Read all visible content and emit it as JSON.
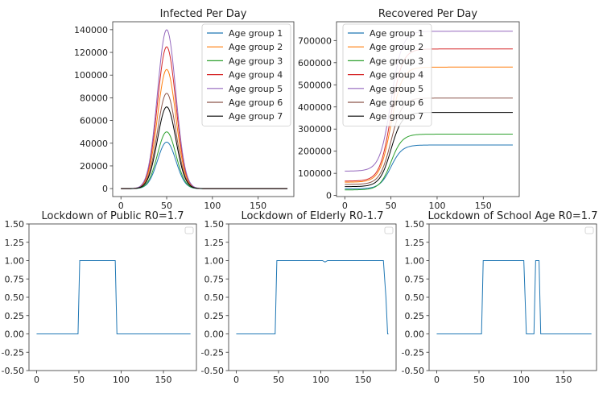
{
  "chart_data": [
    {
      "type": "line",
      "title": "Infected Per Day",
      "xlabel": "",
      "ylabel": "",
      "xlim": [
        -9,
        189
      ],
      "ylim": [
        -7000,
        147000
      ],
      "xticks": [
        0,
        50,
        100,
        150
      ],
      "yticks": [
        0,
        20000,
        40000,
        60000,
        80000,
        100000,
        120000,
        140000
      ],
      "legend": "top-right",
      "model": "gaussian",
      "center": 50,
      "width": 10,
      "series": [
        {
          "name": "Age group 1",
          "color": "#1f77b4",
          "base": 0,
          "peak": 41000
        },
        {
          "name": "Age group 2",
          "color": "#ff7f0e",
          "base": 0,
          "peak": 105000
        },
        {
          "name": "Age group 3",
          "color": "#2ca02c",
          "base": 0,
          "peak": 50000
        },
        {
          "name": "Age group 4",
          "color": "#d62728",
          "base": 0,
          "peak": 125000
        },
        {
          "name": "Age group 5",
          "color": "#9467bd",
          "base": 0,
          "peak": 140000
        },
        {
          "name": "Age group 6",
          "color": "#8c564b",
          "base": 0,
          "peak": 84000
        },
        {
          "name": "Age group 7",
          "color": "#000000",
          "base": 0,
          "peak": 72000
        }
      ]
    },
    {
      "type": "line",
      "title": "Recovered Per Day",
      "xlabel": "",
      "ylabel": "",
      "xlim": [
        -9,
        189
      ],
      "ylim": [
        -5000,
        785000
      ],
      "xticks": [
        0,
        50,
        100,
        150
      ],
      "yticks": [
        0,
        100000,
        200000,
        300000,
        400000,
        500000,
        600000,
        700000
      ],
      "legend": "top-left",
      "model": "logistic",
      "center": 50,
      "width": 6,
      "series": [
        {
          "name": "Age group 1",
          "color": "#1f77b4",
          "base": 30000,
          "peak": 228000
        },
        {
          "name": "Age group 2",
          "color": "#ff7f0e",
          "base": 60000,
          "peak": 580000
        },
        {
          "name": "Age group 3",
          "color": "#2ca02c",
          "base": 25000,
          "peak": 277000
        },
        {
          "name": "Age group 4",
          "color": "#d62728",
          "base": 65000,
          "peak": 662000
        },
        {
          "name": "Age group 5",
          "color": "#9467bd",
          "base": 110000,
          "peak": 742000
        },
        {
          "name": "Age group 6",
          "color": "#8c564b",
          "base": 50000,
          "peak": 440000
        },
        {
          "name": "Age group 7",
          "color": "#000000",
          "base": 40000,
          "peak": 375000
        }
      ]
    },
    {
      "type": "line",
      "title": "Lockdown of Public R0=1.7",
      "xlabel": "",
      "ylabel": "",
      "xlim": [
        -9,
        189
      ],
      "ylim": [
        -0.5,
        1.5
      ],
      "xticks": [
        0,
        50,
        100,
        150
      ],
      "yticks": [
        -0.5,
        -0.25,
        0.0,
        0.25,
        0.5,
        0.75,
        1.0,
        1.25,
        1.5
      ],
      "legend": "top-right",
      "series": [
        {
          "name": "",
          "color": "#1f77b4",
          "x": [
            0,
            49,
            51,
            93,
            95,
            182
          ],
          "y": [
            0,
            0,
            1,
            1,
            0,
            0
          ]
        }
      ]
    },
    {
      "type": "line",
      "title": "Lockdown of Elderly R0-1.7",
      "xlabel": "",
      "ylabel": "",
      "xlim": [
        -9,
        189
      ],
      "ylim": [
        -0.5,
        1.5
      ],
      "xticks": [
        0,
        50,
        100,
        150
      ],
      "yticks": [
        -0.5,
        -0.25,
        0.0,
        0.25,
        0.5,
        0.75,
        1.0,
        1.25,
        1.5
      ],
      "legend": "top-right",
      "series": [
        {
          "name": "",
          "color": "#1f77b4",
          "x": [
            0,
            46,
            48,
            102,
            105,
            108,
            174,
            177,
            179,
            180
          ],
          "y": [
            0,
            0,
            1,
            1,
            0.98,
            1,
            1,
            0.5,
            0,
            0
          ]
        }
      ]
    },
    {
      "type": "line",
      "title": "Lockdown of School Age R0=1.7",
      "xlabel": "",
      "ylabel": "",
      "xlim": [
        -9,
        189
      ],
      "ylim": [
        -0.5,
        1.5
      ],
      "xticks": [
        0,
        50,
        100,
        150
      ],
      "yticks": [
        -0.5,
        -0.25,
        0.0,
        0.25,
        0.5,
        0.75,
        1.0,
        1.25,
        1.5
      ],
      "legend": "top-right",
      "series": [
        {
          "name": "",
          "color": "#1f77b4",
          "x": [
            0,
            53,
            55,
            103,
            106,
            112,
            115,
            117,
            119,
            121,
            123,
            183
          ],
          "y": [
            0,
            0,
            1,
            1,
            0,
            0,
            0,
            1,
            1,
            1,
            0,
            0
          ]
        }
      ]
    }
  ]
}
